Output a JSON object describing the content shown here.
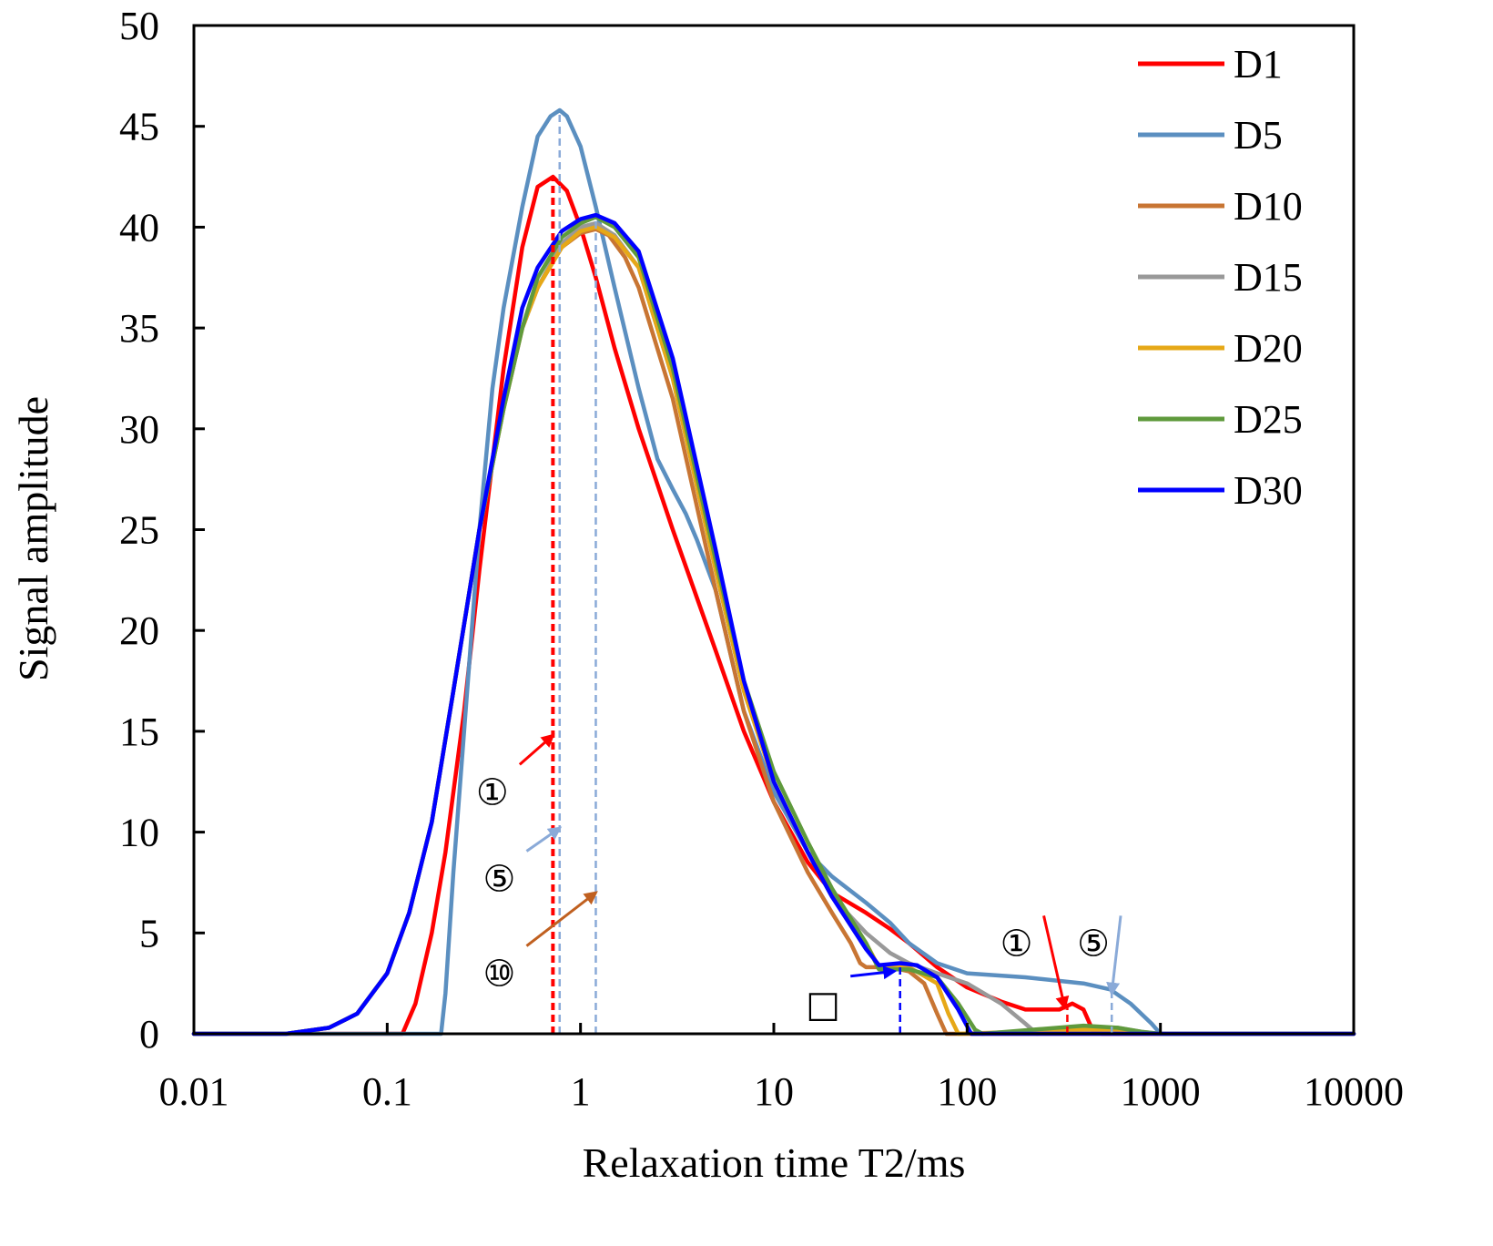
{
  "chart_data": {
    "type": "line",
    "title": "",
    "xlabel": "Relaxation time T2/ms",
    "ylabel": "Signal amplitude",
    "xscale": "log",
    "xlim": [
      0.01,
      10000
    ],
    "ylim": [
      0,
      50
    ],
    "xticks": [
      {
        "value": 0.01,
        "label": "0.01"
      },
      {
        "value": 0.1,
        "label": "0.1"
      },
      {
        "value": 1,
        "label": "1"
      },
      {
        "value": 10,
        "label": "10"
      },
      {
        "value": 100,
        "label": "100"
      },
      {
        "value": 1000,
        "label": "1000"
      },
      {
        "value": 10000,
        "label": "10000"
      }
    ],
    "yticks": [
      {
        "value": 0,
        "label": "0"
      },
      {
        "value": 5,
        "label": "5"
      },
      {
        "value": 10,
        "label": "10"
      },
      {
        "value": 15,
        "label": "15"
      },
      {
        "value": 20,
        "label": "20"
      },
      {
        "value": 25,
        "label": "25"
      },
      {
        "value": 30,
        "label": "30"
      },
      {
        "value": 35,
        "label": "35"
      },
      {
        "value": 40,
        "label": "40"
      },
      {
        "value": 45,
        "label": "45"
      },
      {
        "value": 50,
        "label": "50"
      }
    ],
    "legend_position": "top-right",
    "grid": false,
    "series": [
      {
        "name": "D1",
        "color": "#ff0000",
        "points": [
          [
            0.01,
            0
          ],
          [
            0.12,
            0
          ],
          [
            0.14,
            1.5
          ],
          [
            0.17,
            5
          ],
          [
            0.2,
            9
          ],
          [
            0.25,
            16
          ],
          [
            0.3,
            23
          ],
          [
            0.4,
            33
          ],
          [
            0.5,
            39
          ],
          [
            0.6,
            42
          ],
          [
            0.72,
            42.5
          ],
          [
            0.85,
            41.8
          ],
          [
            1,
            40
          ],
          [
            1.2,
            37.5
          ],
          [
            1.5,
            34
          ],
          [
            2,
            30
          ],
          [
            3,
            25
          ],
          [
            5,
            19
          ],
          [
            7,
            15
          ],
          [
            10,
            11.5
          ],
          [
            15,
            8.5
          ],
          [
            20,
            7
          ],
          [
            30,
            6
          ],
          [
            40,
            5.2
          ],
          [
            50,
            4.5
          ],
          [
            70,
            3.3
          ],
          [
            100,
            2.3
          ],
          [
            150,
            1.6
          ],
          [
            200,
            1.2
          ],
          [
            300,
            1.2
          ],
          [
            350,
            1.5
          ],
          [
            400,
            1.2
          ],
          [
            450,
            0.1
          ],
          [
            500,
            0
          ],
          [
            10000,
            0
          ]
        ]
      },
      {
        "name": "D5",
        "color": "#5b8fc0",
        "points": [
          [
            0.01,
            0
          ],
          [
            0.19,
            0
          ],
          [
            0.2,
            2
          ],
          [
            0.22,
            8
          ],
          [
            0.25,
            15
          ],
          [
            0.3,
            25
          ],
          [
            0.35,
            32
          ],
          [
            0.4,
            36
          ],
          [
            0.5,
            41
          ],
          [
            0.6,
            44.5
          ],
          [
            0.7,
            45.5
          ],
          [
            0.78,
            45.8
          ],
          [
            0.85,
            45.5
          ],
          [
            1,
            44
          ],
          [
            1.2,
            41
          ],
          [
            1.5,
            37
          ],
          [
            2,
            32
          ],
          [
            2.5,
            28.5
          ],
          [
            3,
            27
          ],
          [
            3.5,
            25.8
          ],
          [
            4,
            24.5
          ],
          [
            5,
            22
          ],
          [
            7,
            16
          ],
          [
            10,
            12
          ],
          [
            15,
            9
          ],
          [
            20,
            7.8
          ],
          [
            30,
            6.5
          ],
          [
            40,
            5.5
          ],
          [
            50,
            4.5
          ],
          [
            70,
            3.5
          ],
          [
            100,
            3
          ],
          [
            200,
            2.8
          ],
          [
            400,
            2.5
          ],
          [
            550,
            2.2
          ],
          [
            700,
            1.5
          ],
          [
            900,
            0.5
          ],
          [
            1000,
            0
          ],
          [
            10000,
            0
          ]
        ]
      },
      {
        "name": "D10",
        "color": "#c87533",
        "points": [
          [
            0.01,
            0
          ],
          [
            0.03,
            0
          ],
          [
            0.05,
            0.3
          ],
          [
            0.07,
            1
          ],
          [
            0.1,
            3
          ],
          [
            0.13,
            6
          ],
          [
            0.17,
            10.5
          ],
          [
            0.22,
            17
          ],
          [
            0.3,
            25
          ],
          [
            0.4,
            31
          ],
          [
            0.5,
            35
          ],
          [
            0.6,
            37
          ],
          [
            0.8,
            39
          ],
          [
            1,
            39.7
          ],
          [
            1.2,
            39.9
          ],
          [
            1.4,
            39.6
          ],
          [
            1.7,
            38.5
          ],
          [
            2,
            37
          ],
          [
            3,
            31.5
          ],
          [
            5,
            22
          ],
          [
            7,
            16
          ],
          [
            10,
            11.5
          ],
          [
            15,
            8
          ],
          [
            20,
            6
          ],
          [
            25,
            4.5
          ],
          [
            28,
            3.5
          ],
          [
            30,
            3.3
          ],
          [
            40,
            3.3
          ],
          [
            50,
            3.1
          ],
          [
            60,
            2.5
          ],
          [
            70,
            1
          ],
          [
            78,
            0
          ],
          [
            10000,
            0
          ]
        ]
      },
      {
        "name": "D15",
        "color": "#999999",
        "points": [
          [
            0.01,
            0
          ],
          [
            0.03,
            0
          ],
          [
            0.05,
            0.3
          ],
          [
            0.07,
            1
          ],
          [
            0.1,
            3
          ],
          [
            0.13,
            6
          ],
          [
            0.17,
            10.5
          ],
          [
            0.22,
            17
          ],
          [
            0.3,
            25
          ],
          [
            0.4,
            31
          ],
          [
            0.5,
            35
          ],
          [
            0.6,
            37
          ],
          [
            0.8,
            39.2
          ],
          [
            1,
            40
          ],
          [
            1.2,
            40.2
          ],
          [
            1.5,
            39.6
          ],
          [
            2,
            38
          ],
          [
            3,
            32.5
          ],
          [
            5,
            23
          ],
          [
            7,
            17
          ],
          [
            10,
            12.5
          ],
          [
            15,
            9
          ],
          [
            20,
            6.8
          ],
          [
            30,
            5
          ],
          [
            40,
            4
          ],
          [
            50,
            3.5
          ],
          [
            70,
            3
          ],
          [
            100,
            2.5
          ],
          [
            150,
            1.5
          ],
          [
            200,
            0.5
          ],
          [
            230,
            0
          ],
          [
            400,
            0.3
          ],
          [
            600,
            0.3
          ],
          [
            800,
            0.1
          ],
          [
            1000,
            0
          ],
          [
            10000,
            0
          ]
        ]
      },
      {
        "name": "D20",
        "color": "#e6a817",
        "points": [
          [
            0.01,
            0
          ],
          [
            0.03,
            0
          ],
          [
            0.05,
            0.3
          ],
          [
            0.07,
            1
          ],
          [
            0.1,
            3
          ],
          [
            0.13,
            6
          ],
          [
            0.17,
            10.5
          ],
          [
            0.22,
            17
          ],
          [
            0.3,
            25
          ],
          [
            0.4,
            31
          ],
          [
            0.5,
            35
          ],
          [
            0.6,
            37
          ],
          [
            0.8,
            39
          ],
          [
            1,
            39.8
          ],
          [
            1.2,
            40
          ],
          [
            1.5,
            39.5
          ],
          [
            2,
            38
          ],
          [
            3,
            32.5
          ],
          [
            5,
            23
          ],
          [
            7,
            17
          ],
          [
            10,
            12.5
          ],
          [
            15,
            9
          ],
          [
            20,
            7
          ],
          [
            30,
            4.5
          ],
          [
            35,
            3.3
          ],
          [
            50,
            3.3
          ],
          [
            70,
            2.5
          ],
          [
            80,
            1
          ],
          [
            90,
            0
          ],
          [
            400,
            0.2
          ],
          [
            600,
            0.2
          ],
          [
            800,
            0
          ],
          [
            10000,
            0
          ]
        ]
      },
      {
        "name": "D25",
        "color": "#5f9a3c",
        "points": [
          [
            0.01,
            0
          ],
          [
            0.03,
            0
          ],
          [
            0.05,
            0.3
          ],
          [
            0.07,
            1
          ],
          [
            0.1,
            3
          ],
          [
            0.13,
            6
          ],
          [
            0.17,
            10.5
          ],
          [
            0.22,
            17
          ],
          [
            0.3,
            25
          ],
          [
            0.4,
            31
          ],
          [
            0.5,
            35
          ],
          [
            0.6,
            37.5
          ],
          [
            0.8,
            39.5
          ],
          [
            1,
            40.2
          ],
          [
            1.2,
            40.5
          ],
          [
            1.5,
            40
          ],
          [
            2,
            38.5
          ],
          [
            3,
            33
          ],
          [
            5,
            23.5
          ],
          [
            7,
            17.5
          ],
          [
            10,
            13
          ],
          [
            15,
            9.5
          ],
          [
            20,
            7.2
          ],
          [
            30,
            4.5
          ],
          [
            35,
            3.2
          ],
          [
            40,
            3.2
          ],
          [
            50,
            3.2
          ],
          [
            70,
            2.8
          ],
          [
            90,
            1.5
          ],
          [
            110,
            0.2
          ],
          [
            120,
            0
          ],
          [
            400,
            0.4
          ],
          [
            600,
            0.3
          ],
          [
            800,
            0.1
          ],
          [
            1000,
            0
          ],
          [
            10000,
            0
          ]
        ]
      },
      {
        "name": "D30",
        "color": "#0000ff",
        "points": [
          [
            0.01,
            0
          ],
          [
            0.03,
            0
          ],
          [
            0.05,
            0.3
          ],
          [
            0.07,
            1
          ],
          [
            0.1,
            3
          ],
          [
            0.13,
            6
          ],
          [
            0.17,
            10.5
          ],
          [
            0.22,
            17
          ],
          [
            0.3,
            25
          ],
          [
            0.4,
            31.5
          ],
          [
            0.5,
            36
          ],
          [
            0.6,
            38
          ],
          [
            0.8,
            39.8
          ],
          [
            1,
            40.4
          ],
          [
            1.2,
            40.6
          ],
          [
            1.5,
            40.2
          ],
          [
            2,
            38.8
          ],
          [
            3,
            33.5
          ],
          [
            5,
            24
          ],
          [
            7,
            17.5
          ],
          [
            10,
            12.5
          ],
          [
            15,
            9
          ],
          [
            20,
            6.8
          ],
          [
            30,
            4.2
          ],
          [
            35,
            3.4
          ],
          [
            45,
            3.5
          ],
          [
            55,
            3.4
          ],
          [
            70,
            2.8
          ],
          [
            90,
            1.2
          ],
          [
            105,
            0
          ],
          [
            10000,
            0
          ]
        ]
      }
    ],
    "reference_lines": [
      {
        "x": 0.72,
        "y": 42.5,
        "color": "#ff0000",
        "stroke": 4
      },
      {
        "x": 0.78,
        "y": 45.8,
        "color": "#8aaad8",
        "stroke": 2.5
      },
      {
        "x": 1.2,
        "y": 40.5,
        "color": "#8aaad8",
        "stroke": 2.5
      },
      {
        "x": 45,
        "y": 3.5,
        "color": "#0000ff",
        "stroke": 2.5
      },
      {
        "x": 330,
        "y": 1.4,
        "color": "#ff0000",
        "stroke": 2.5
      },
      {
        "x": 560,
        "y": 2.3,
        "color": "#8aaad8",
        "stroke": 2.5
      }
    ],
    "annotations": [
      {
        "label": "①",
        "x": 0.35,
        "y": 12.0,
        "color": "#ff0000",
        "arrow_to": [
          0.72,
          14.8
        ]
      },
      {
        "label": "⑤",
        "x": 0.38,
        "y": 7.7,
        "color": "#8aaad8",
        "arrow_to": [
          0.78,
          10.2
        ]
      },
      {
        "label": "⑩",
        "x": 0.38,
        "y": 3.0,
        "color": "#c06020",
        "arrow_to": [
          1.2,
          7.0
        ]
      },
      {
        "label": "□",
        "x": 18,
        "y": 1.5,
        "color": "#0000ff",
        "arrow_to": [
          42,
          3.1
        ]
      },
      {
        "label": "①",
        "x": 180,
        "y": 4.5,
        "color": "#ff0000",
        "arrow_to": [
          320,
          1.3
        ]
      },
      {
        "label": "⑤",
        "x": 450,
        "y": 4.5,
        "color": "#8aaad8",
        "arrow_to": [
          560,
          2.0
        ]
      }
    ]
  }
}
